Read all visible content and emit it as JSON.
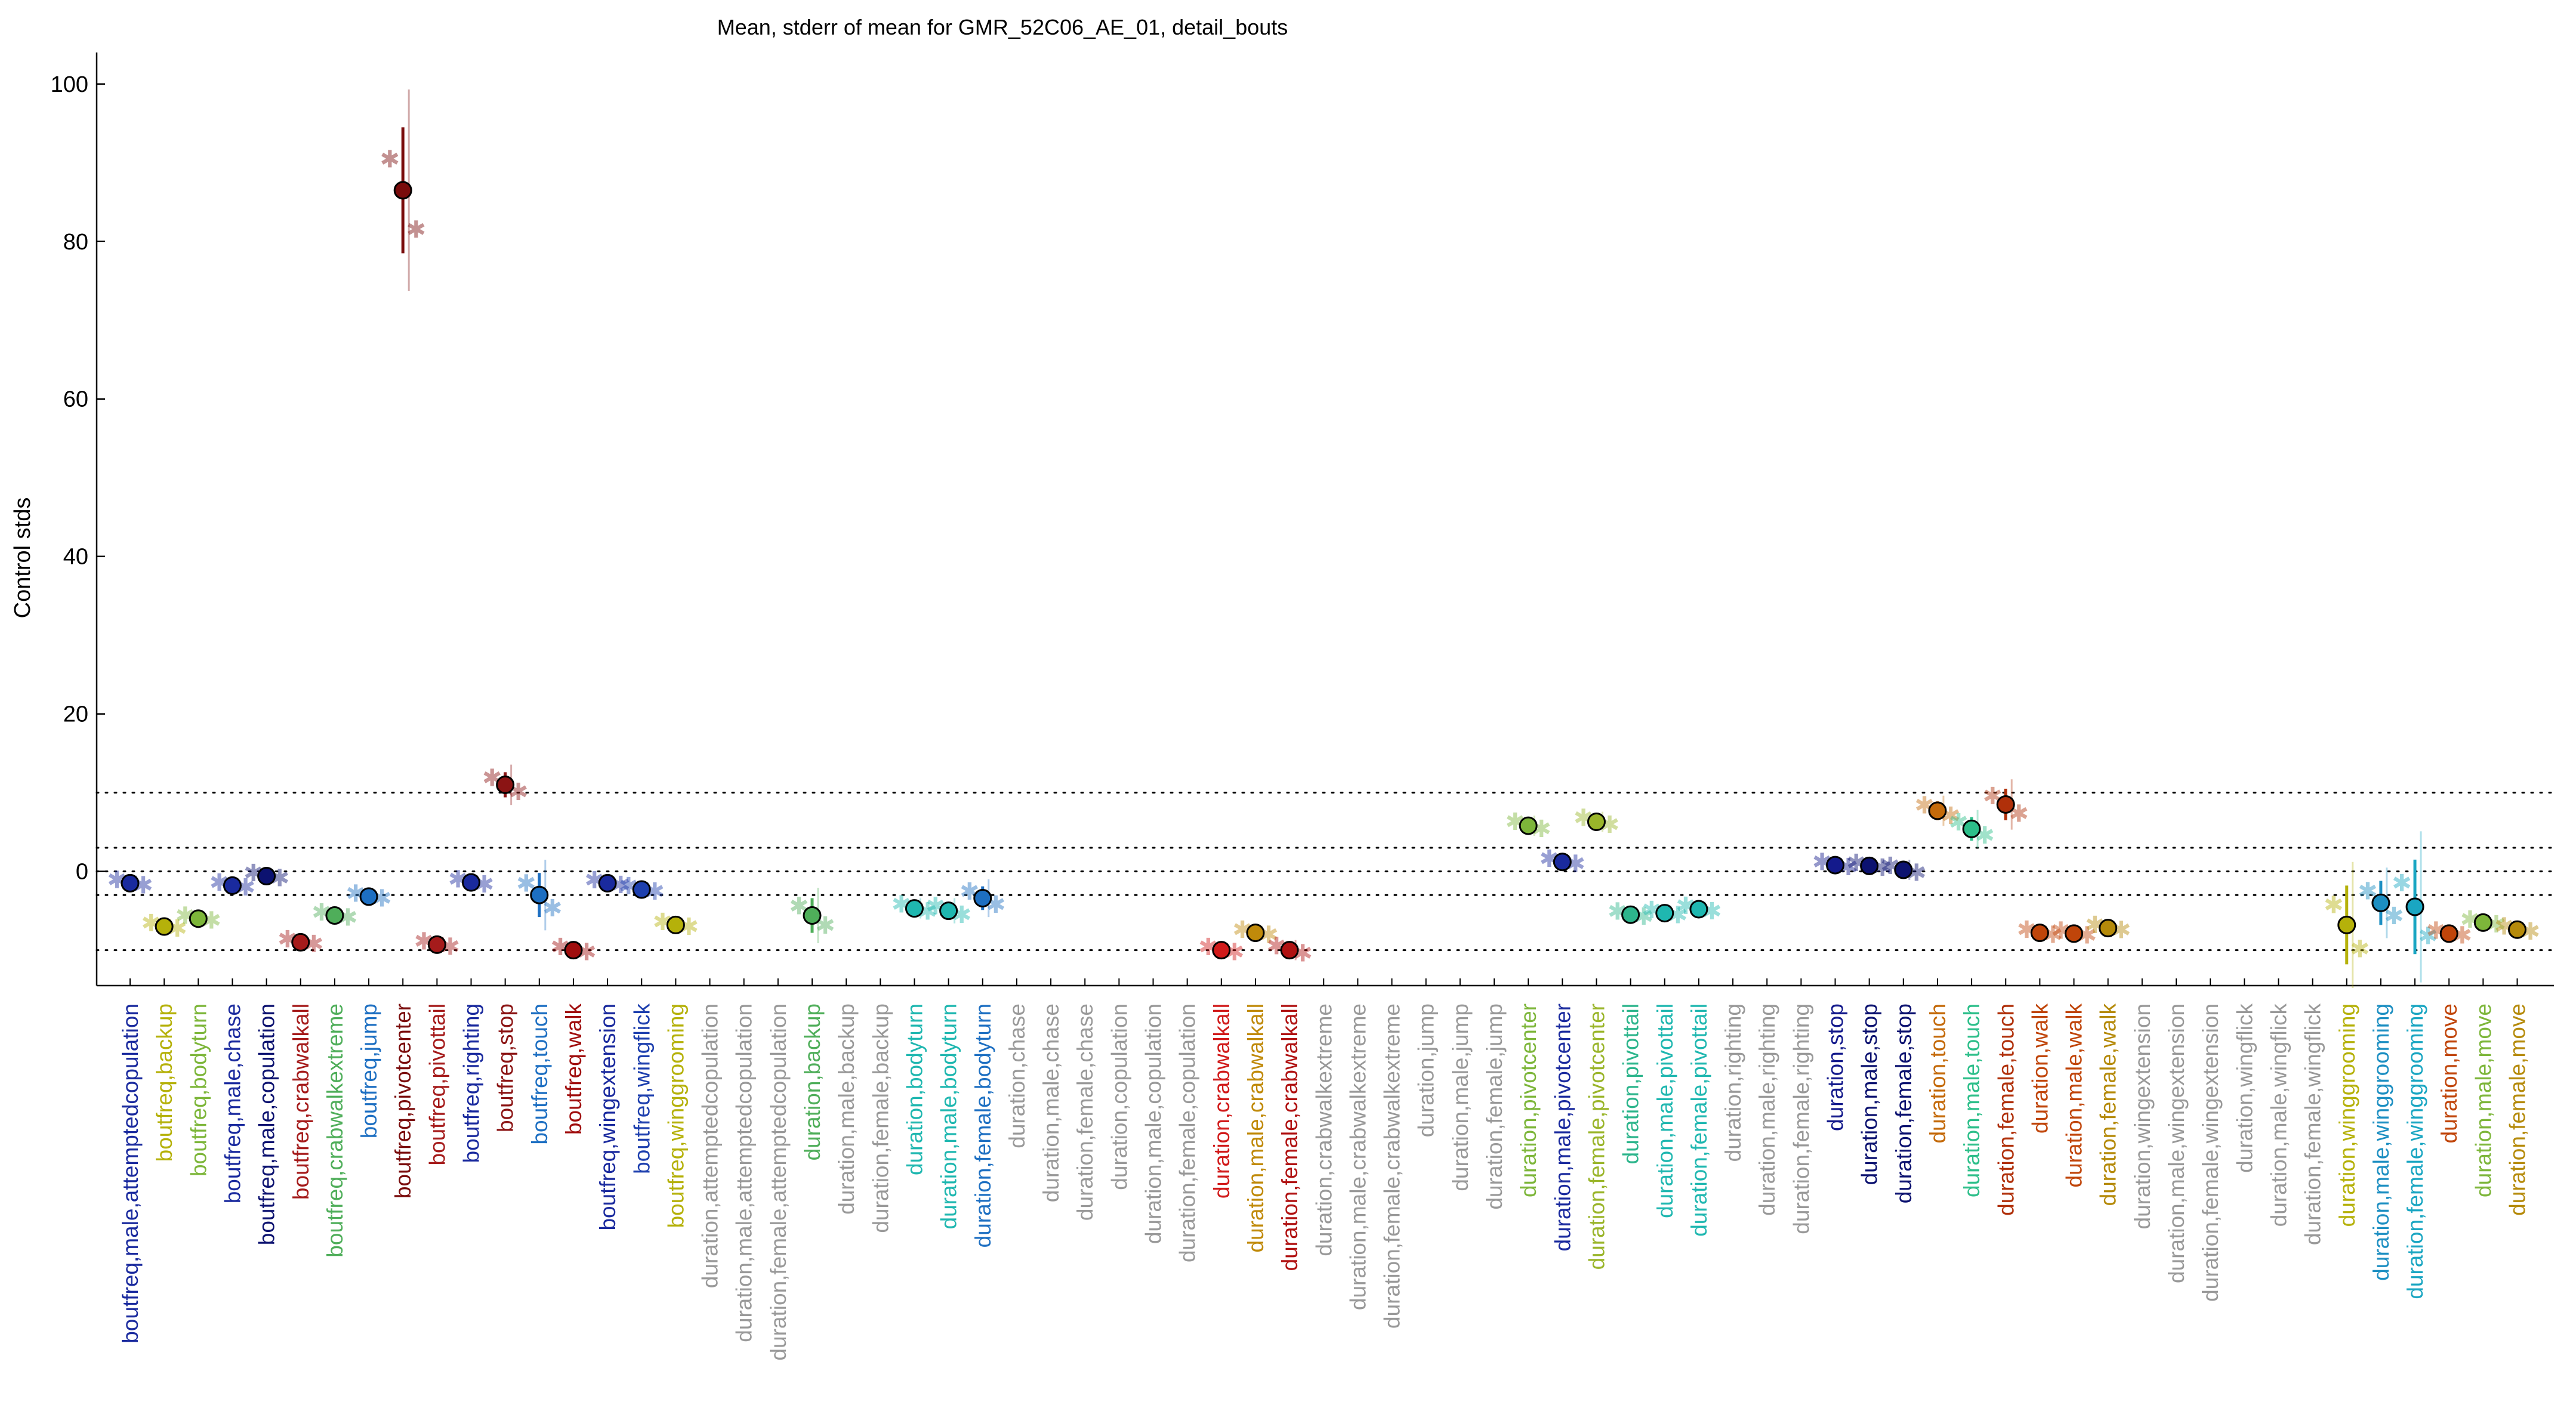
{
  "chart_data": {
    "type": "scatter",
    "title": "Mean, stderr of mean for GMR_52C06_AE_01, detail_bouts",
    "xlabel": "",
    "ylabel": "Control stds",
    "ylim": [
      -14.5,
      104
    ],
    "yticks": [
      0,
      20,
      40,
      60,
      80,
      100
    ],
    "reference_lines": [
      10,
      3,
      0,
      -3,
      -10
    ],
    "categories": [
      {
        "label": "boutfreq,male,attemptedcopulation",
        "color": "#1a2a9e",
        "mean": -1.5,
        "sem": 0.6
      },
      {
        "label": "boutfreq,backup",
        "color": "#b5b10a",
        "mean": -7.0,
        "sem": 0.6
      },
      {
        "label": "boutfreq,bodyturn",
        "color": "#7db63a",
        "mean": -6.0,
        "sem": 0.5
      },
      {
        "label": "boutfreq,male,chase",
        "color": "#1a2a9e",
        "mean": -1.8,
        "sem": 0.5
      },
      {
        "label": "boutfreq,male,copulation",
        "color": "#0c1270",
        "mean": -0.6,
        "sem": 0.5
      },
      {
        "label": "boutfreq,crabwalkall",
        "color": "#a51b1b",
        "mean": -9.0,
        "sem": 0.5
      },
      {
        "label": "boutfreq,crabwalkextreme",
        "color": "#4fae5a",
        "mean": -5.6,
        "sem": 0.5
      },
      {
        "label": "boutfreq,jump",
        "color": "#1d6fc2",
        "mean": -3.2,
        "sem": 0.5
      },
      {
        "label": "boutfreq,pivotcenter",
        "color": "#7a0c0c",
        "mean": 86.5,
        "sem": 8.0
      },
      {
        "label": "boutfreq,pivottail",
        "color": "#a51b1b",
        "mean": -9.3,
        "sem": 0.6
      },
      {
        "label": "boutfreq,righting",
        "color": "#1a2a9e",
        "mean": -1.4,
        "sem": 0.5
      },
      {
        "label": "boutfreq,stop",
        "color": "#8b1414",
        "mean": 11.0,
        "sem": 1.6
      },
      {
        "label": "boutfreq,touch",
        "color": "#1d6fc2",
        "mean": -3.0,
        "sem": 2.8
      },
      {
        "label": "boutfreq,walk",
        "color": "#a00e0e",
        "mean": -10.0,
        "sem": 0.5
      },
      {
        "label": "boutfreq,wingextension",
        "color": "#1a2a9e",
        "mean": -1.5,
        "sem": 0.5
      },
      {
        "label": "boutfreq,wingflick",
        "color": "#1d3fae",
        "mean": -2.3,
        "sem": 0.6
      },
      {
        "label": "boutfreq,winggrooming",
        "color": "#b5b10a",
        "mean": -6.8,
        "sem": 0.5
      },
      {
        "label": "duration,attemptedcopulation",
        "color": "#999999",
        "mean": null,
        "sem": null
      },
      {
        "label": "duration,male,attemptedcopulation",
        "color": "#999999",
        "mean": null,
        "sem": null
      },
      {
        "label": "duration,female,attemptedcopulation",
        "color": "#999999",
        "mean": null,
        "sem": null
      },
      {
        "label": "duration,backup",
        "color": "#4fae5a",
        "mean": -5.6,
        "sem": 2.2
      },
      {
        "label": "duration,male,backup",
        "color": "#999999",
        "mean": null,
        "sem": null
      },
      {
        "label": "duration,female,backup",
        "color": "#999999",
        "mean": null,
        "sem": null
      },
      {
        "label": "duration,bodyturn",
        "color": "#1fb7b0",
        "mean": -4.7,
        "sem": 0.8
      },
      {
        "label": "duration,male,bodyturn",
        "color": "#1fb7b0",
        "mean": -5.0,
        "sem": 1.0
      },
      {
        "label": "duration,female,bodyturn",
        "color": "#1d6fc2",
        "mean": -3.4,
        "sem": 1.5
      },
      {
        "label": "duration,chase",
        "color": "#999999",
        "mean": null,
        "sem": null
      },
      {
        "label": "duration,male,chase",
        "color": "#999999",
        "mean": null,
        "sem": null
      },
      {
        "label": "duration,female,chase",
        "color": "#999999",
        "mean": null,
        "sem": null
      },
      {
        "label": "duration,copulation",
        "color": "#999999",
        "mean": null,
        "sem": null
      },
      {
        "label": "duration,male,copulation",
        "color": "#999999",
        "mean": null,
        "sem": null
      },
      {
        "label": "duration,female,copulation",
        "color": "#999999",
        "mean": null,
        "sem": null
      },
      {
        "label": "duration,crabwalkall",
        "color": "#d11a1a",
        "mean": -10.0,
        "sem": 0.5
      },
      {
        "label": "duration,male,crabwalkall",
        "color": "#c08a0a",
        "mean": -7.8,
        "sem": 0.5
      },
      {
        "label": "duration,female,crabwalkall",
        "color": "#b01212",
        "mean": -10.0,
        "sem": 0.8
      },
      {
        "label": "duration,crabwalkextreme",
        "color": "#999999",
        "mean": null,
        "sem": null
      },
      {
        "label": "duration,male,crabwalkextreme",
        "color": "#999999",
        "mean": null,
        "sem": null
      },
      {
        "label": "duration,female,crabwalkextreme",
        "color": "#999999",
        "mean": null,
        "sem": null
      },
      {
        "label": "duration,jump",
        "color": "#999999",
        "mean": null,
        "sem": null
      },
      {
        "label": "duration,male,jump",
        "color": "#999999",
        "mean": null,
        "sem": null
      },
      {
        "label": "duration,female,jump",
        "color": "#999999",
        "mean": null,
        "sem": null
      },
      {
        "label": "duration,pivotcenter",
        "color": "#7db63a",
        "mean": 5.8,
        "sem": 0.8
      },
      {
        "label": "duration,male,pivotcenter",
        "color": "#1a2a9e",
        "mean": 1.2,
        "sem": 0.5
      },
      {
        "label": "duration,female,pivotcenter",
        "color": "#9ab52a",
        "mean": 6.3,
        "sem": 0.8
      },
      {
        "label": "duration,pivottail",
        "color": "#2db58c",
        "mean": -5.5,
        "sem": 0.5
      },
      {
        "label": "duration,male,pivottail",
        "color": "#1fb7b0",
        "mean": -5.3,
        "sem": 0.6
      },
      {
        "label": "duration,female,pivottail",
        "color": "#1fb7b0",
        "mean": -4.8,
        "sem": 0.6
      },
      {
        "label": "duration,righting",
        "color": "#999999",
        "mean": null,
        "sem": null
      },
      {
        "label": "duration,male,righting",
        "color": "#999999",
        "mean": null,
        "sem": null
      },
      {
        "label": "duration,female,righting",
        "color": "#999999",
        "mean": null,
        "sem": null
      },
      {
        "label": "duration,stop",
        "color": "#141a8c",
        "mean": 0.8,
        "sem": 0.5
      },
      {
        "label": "duration,male,stop",
        "color": "#0c1270",
        "mean": 0.7,
        "sem": 0.5
      },
      {
        "label": "duration,female,stop",
        "color": "#0c1270",
        "mean": 0.2,
        "sem": 0.8
      },
      {
        "label": "duration,touch",
        "color": "#c46a0a",
        "mean": 7.7,
        "sem": 1.2
      },
      {
        "label": "duration,male,touch",
        "color": "#2dbf8a",
        "mean": 5.4,
        "sem": 1.5
      },
      {
        "label": "duration,female,touch",
        "color": "#b0300a",
        "mean": 8.5,
        "sem": 2.0
      },
      {
        "label": "duration,walk",
        "color": "#c0450a",
        "mean": -7.8,
        "sem": 0.5
      },
      {
        "label": "duration,male,walk",
        "color": "#c0450a",
        "mean": -7.9,
        "sem": 0.5
      },
      {
        "label": "duration,female,walk",
        "color": "#b58a0a",
        "mean": -7.2,
        "sem": 0.5
      },
      {
        "label": "duration,wingextension",
        "color": "#999999",
        "mean": null,
        "sem": null
      },
      {
        "label": "duration,male,wingextension",
        "color": "#999999",
        "mean": null,
        "sem": null
      },
      {
        "label": "duration,female,wingextension",
        "color": "#999999",
        "mean": null,
        "sem": null
      },
      {
        "label": "duration,wingflick",
        "color": "#999999",
        "mean": null,
        "sem": null
      },
      {
        "label": "duration,male,wingflick",
        "color": "#999999",
        "mean": null,
        "sem": null
      },
      {
        "label": "duration,female,wingflick",
        "color": "#999999",
        "mean": null,
        "sem": null
      },
      {
        "label": "duration,winggrooming",
        "color": "#b5b10a",
        "mean": -6.8,
        "sem": 5.0
      },
      {
        "label": "duration,male,winggrooming",
        "color": "#1d8fc2",
        "mean": -4.0,
        "sem": 2.8
      },
      {
        "label": "duration,female,winggrooming",
        "color": "#1aa6c2",
        "mean": -4.5,
        "sem": 6.0
      },
      {
        "label": "duration,move",
        "color": "#c0450a",
        "mean": -7.9,
        "sem": 0.5
      },
      {
        "label": "duration,male,move",
        "color": "#7db63a",
        "mean": -6.5,
        "sem": 0.5
      },
      {
        "label": "duration,female,move",
        "color": "#b58a0a",
        "mean": -7.4,
        "sem": 0.5
      }
    ]
  }
}
